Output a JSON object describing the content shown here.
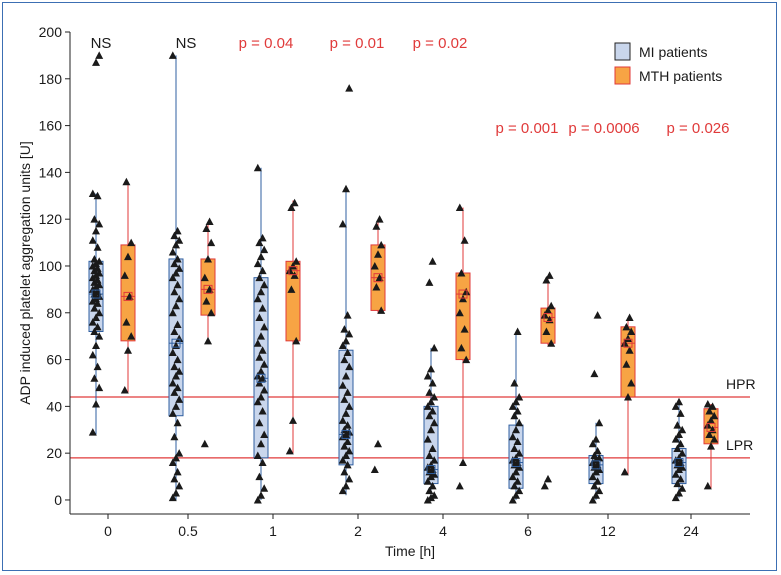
{
  "chart_data": {
    "type": "box",
    "xlabel": "Time [h]",
    "ylabel": "ADP induced platelet aggregation units [U]",
    "ylim": [
      -6,
      200
    ],
    "yticks": [
      0,
      20,
      40,
      60,
      80,
      100,
      120,
      140,
      160,
      180,
      200
    ],
    "categories": [
      "0",
      "0.5",
      "1",
      "2",
      "4",
      "6",
      "12",
      "24"
    ],
    "series": [
      {
        "name": "MI patients",
        "color": "#c9d6ec",
        "edge": "#2f5fa0",
        "boxes": [
          {
            "cat": "0",
            "min": 28,
            "q1": 72,
            "median": 88,
            "q3": 102,
            "max": 131,
            "mean": 88,
            "points": [
              29,
              41,
              48,
              52,
              57,
              62,
              66,
              70,
              72,
              74,
              76,
              78,
              80,
              82,
              84,
              85,
              86,
              87,
              88,
              89,
              90,
              91,
              92,
              93,
              94,
              95,
              96,
              97,
              98,
              99,
              100,
              101,
              102,
              103,
              108,
              111,
              115,
              118,
              120,
              130,
              131,
              187,
              190
            ]
          },
          {
            "cat": "0.5",
            "min": 0,
            "q1": 36,
            "median": 67,
            "q3": 103,
            "max": 190,
            "mean": 67,
            "points": [
              1,
              3,
              6,
              9,
              12,
              16,
              18,
              20,
              27,
              33,
              37,
              40,
              43,
              46,
              48,
              50,
              53,
              55,
              57,
              60,
              63,
              66,
              69,
              72,
              75,
              80,
              83,
              86,
              89,
              92,
              95,
              97,
              99,
              101,
              103,
              106,
              109,
              111,
              113,
              115,
              190
            ]
          },
          {
            "cat": "1",
            "min": 0,
            "q1": 18,
            "median": 52,
            "q3": 95,
            "max": 142,
            "mean": 52,
            "points": [
              0,
              2,
              5,
              10,
              16,
              19,
              24,
              28,
              33,
              38,
              42,
              44,
              47,
              50,
              52,
              53,
              55,
              58,
              61,
              64,
              67,
              70,
              74,
              78,
              82,
              86,
              89,
              92,
              95,
              98,
              101,
              104,
              107,
              110,
              112,
              142
            ]
          },
          {
            "cat": "2",
            "min": 2,
            "q1": 15,
            "median": 28,
            "q3": 64,
            "max": 133,
            "mean": 28,
            "points": [
              4,
              6,
              9,
              12,
              15,
              17,
              19,
              21,
              23,
              25,
              27,
              28,
              29,
              30,
              32,
              34,
              37,
              40,
              43,
              46,
              49,
              53,
              57,
              60,
              63,
              66,
              68,
              71,
              73,
              79,
              118,
              133,
              176
            ]
          },
          {
            "cat": "4",
            "min": 0,
            "q1": 7,
            "median": 13,
            "q3": 40,
            "max": 65,
            "mean": 13,
            "points": [
              0,
              1,
              2,
              4,
              6,
              8,
              10,
              11,
              12,
              13,
              14,
              15,
              17,
              19,
              22,
              26,
              30,
              33,
              36,
              38,
              40,
              42,
              44,
              46,
              50,
              53,
              56,
              65,
              93,
              102
            ]
          },
          {
            "cat": "6",
            "min": 0,
            "q1": 5,
            "median": 16,
            "q3": 32,
            "max": 72,
            "mean": 16,
            "points": [
              0,
              2,
              4,
              6,
              8,
              10,
              12,
              14,
              15,
              16,
              17,
              18,
              20,
              22,
              25,
              27,
              30,
              33,
              36,
              38,
              40,
              42,
              44,
              50,
              72
            ]
          },
          {
            "cat": "12",
            "min": 0,
            "q1": 7,
            "median": 15,
            "q3": 19,
            "max": 33,
            "mean": 15,
            "points": [
              0,
              2,
              4,
              6,
              8,
              10,
              12,
              13,
              14,
              15,
              16,
              17,
              18,
              19,
              21,
              24,
              26,
              33,
              54,
              79
            ]
          },
          {
            "cat": "24",
            "min": 1,
            "q1": 7,
            "median": 16,
            "q3": 22,
            "max": 42,
            "mean": 16,
            "points": [
              1,
              3,
              5,
              7,
              9,
              11,
              13,
              14,
              15,
              16,
              17,
              18,
              20,
              22,
              24,
              26,
              28,
              30,
              32,
              37,
              40,
              42
            ]
          }
        ]
      },
      {
        "name": "MTH patients",
        "color": "#f7a444",
        "edge": "#e03a3a",
        "boxes": [
          {
            "cat": "0",
            "min": 46,
            "q1": 68,
            "median": 87,
            "q3": 109,
            "max": 136,
            "mean": 87,
            "points": [
              47,
              64,
              70,
              76,
              87,
              96,
              104,
              110,
              136
            ]
          },
          {
            "cat": "0.5",
            "min": 67,
            "q1": 79,
            "median": 90,
            "q3": 103,
            "max": 119,
            "mean": 90,
            "points": [
              24,
              68,
              80,
              85,
              90,
              95,
              103,
              110,
              116,
              119
            ]
          },
          {
            "cat": "1",
            "min": 20,
            "q1": 68,
            "median": 98,
            "q3": 102,
            "max": 128,
            "mean": 98,
            "points": [
              21,
              34,
              68,
              90,
              96,
              98,
              100,
              102,
              125,
              127
            ]
          },
          {
            "cat": "2",
            "min": 80,
            "q1": 81,
            "median": 95,
            "q3": 109,
            "max": 120,
            "mean": 95,
            "points": [
              13,
              24,
              81,
              91,
              95,
              100,
              105,
              109,
              117,
              120
            ]
          },
          {
            "cat": "4",
            "min": 15,
            "q1": 60,
            "median": 88,
            "q3": 97,
            "max": 125,
            "mean": 88,
            "points": [
              6,
              16,
              60,
              65,
              73,
              80,
              86,
              89,
              97,
              111,
              125
            ]
          },
          {
            "cat": "6",
            "min": 66,
            "q1": 67,
            "median": 78,
            "q3": 82,
            "max": 96,
            "mean": 78,
            "points": [
              6,
              9,
              67,
              72,
              77,
              79,
              81,
              83,
              94,
              96
            ]
          },
          {
            "cat": "12",
            "min": 11,
            "q1": 44,
            "median": 67,
            "q3": 74,
            "max": 78,
            "mean": 67,
            "points": [
              12,
              44,
              50,
              58,
              64,
              67,
              69,
              72,
              74,
              78
            ]
          },
          {
            "cat": "24",
            "min": 5,
            "q1": 24,
            "median": 31,
            "q3": 39,
            "max": 41,
            "mean": 31,
            "points": [
              6,
              23,
              26,
              28,
              30,
              32,
              34,
              36,
              38,
              40,
              41
            ]
          }
        ]
      }
    ],
    "reference_lines": [
      {
        "label": "HPR",
        "value": 44,
        "color": "#e03a3a"
      },
      {
        "label": "LPR",
        "value": 18,
        "color": "#e03a3a"
      }
    ],
    "annotations": [
      {
        "text": "NS",
        "cat": "0",
        "color": "#1a1a1a"
      },
      {
        "text": "NS",
        "cat": "0.5",
        "color": "#1a1a1a"
      },
      {
        "text": "p = 0.04",
        "cat": "1",
        "color": "#e03a3a"
      },
      {
        "text": "p = 0.01",
        "cat": "2",
        "color": "#e03a3a"
      },
      {
        "text": "p = 0.02",
        "cat": "4",
        "color": "#e03a3a"
      },
      {
        "text": "p = 0.001",
        "cat": "6",
        "color": "#e03a3a"
      },
      {
        "text": "p = 0.0006",
        "cat": "12",
        "color": "#e03a3a"
      },
      {
        "text": "p = 0.026",
        "cat": "24",
        "color": "#e03a3a"
      }
    ],
    "legend": {
      "position": "top-right",
      "entries": [
        "MI patients",
        "MTH patients"
      ]
    },
    "grid": false
  }
}
